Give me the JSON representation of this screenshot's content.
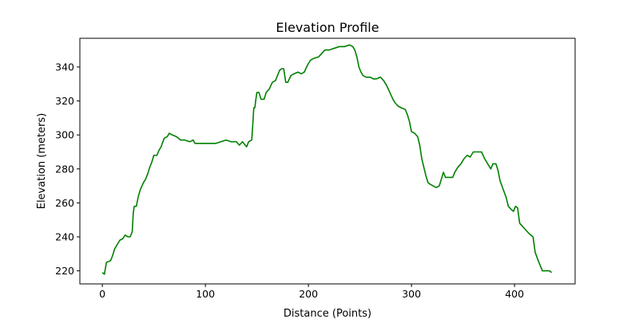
{
  "chart_data": {
    "type": "line",
    "title": "Elevation Profile",
    "xlabel": "Distance (Points)",
    "ylabel": "Elevation (meters)",
    "xlim": [
      -21.8,
      458.8
    ],
    "ylim": [
      212.3,
      356.9
    ],
    "xticks": [
      0,
      100,
      200,
      300,
      400
    ],
    "yticks": [
      220,
      240,
      260,
      280,
      300,
      320,
      340
    ],
    "grid": false,
    "legend": "none",
    "series": [
      {
        "color": "#008000",
        "points": [
          [
            0,
            219
          ],
          [
            2,
            218
          ],
          [
            4,
            225
          ],
          [
            8,
            226
          ],
          [
            10,
            229
          ],
          [
            12,
            233
          ],
          [
            15,
            236
          ],
          [
            17,
            238
          ],
          [
            20,
            239
          ],
          [
            22,
            241
          ],
          [
            25,
            240
          ],
          [
            27,
            240
          ],
          [
            29,
            243
          ],
          [
            30,
            254
          ],
          [
            31,
            258
          ],
          [
            33,
            258
          ],
          [
            35,
            264
          ],
          [
            37,
            268
          ],
          [
            40,
            272
          ],
          [
            42,
            274
          ],
          [
            44,
            277
          ],
          [
            46,
            281
          ],
          [
            48,
            284
          ],
          [
            50,
            288
          ],
          [
            53,
            288
          ],
          [
            55,
            291
          ],
          [
            57,
            293
          ],
          [
            60,
            298
          ],
          [
            63,
            299
          ],
          [
            65,
            301
          ],
          [
            68,
            300
          ],
          [
            72,
            299
          ],
          [
            76,
            297
          ],
          [
            80,
            297
          ],
          [
            85,
            296
          ],
          [
            88,
            297
          ],
          [
            90,
            295
          ],
          [
            95,
            295
          ],
          [
            100,
            295
          ],
          [
            105,
            295
          ],
          [
            110,
            295
          ],
          [
            115,
            296
          ],
          [
            120,
            297
          ],
          [
            125,
            296
          ],
          [
            130,
            296
          ],
          [
            133,
            294
          ],
          [
            136,
            296
          ],
          [
            140,
            293
          ],
          [
            142,
            296
          ],
          [
            145,
            297
          ],
          [
            146,
            306
          ],
          [
            147,
            316
          ],
          [
            148,
            316
          ],
          [
            149,
            321
          ],
          [
            150,
            325
          ],
          [
            152,
            325
          ],
          [
            154,
            321
          ],
          [
            157,
            321
          ],
          [
            159,
            325
          ],
          [
            162,
            327
          ],
          [
            165,
            331
          ],
          [
            168,
            332
          ],
          [
            170,
            335
          ],
          [
            172,
            338
          ],
          [
            174,
            339
          ],
          [
            176,
            339
          ],
          [
            178,
            331
          ],
          [
            180,
            331
          ],
          [
            183,
            335
          ],
          [
            186,
            336
          ],
          [
            190,
            337
          ],
          [
            193,
            336
          ],
          [
            196,
            337
          ],
          [
            199,
            341
          ],
          [
            202,
            344
          ],
          [
            205,
            345
          ],
          [
            210,
            346
          ],
          [
            213,
            348
          ],
          [
            216,
            350
          ],
          [
            220,
            350
          ],
          [
            225,
            351
          ],
          [
            230,
            352
          ],
          [
            235,
            352
          ],
          [
            240,
            353
          ],
          [
            243,
            352
          ],
          [
            245,
            350
          ],
          [
            247,
            346
          ],
          [
            249,
            340
          ],
          [
            251,
            337
          ],
          [
            253,
            335
          ],
          [
            256,
            334
          ],
          [
            260,
            334
          ],
          [
            263,
            333
          ],
          [
            266,
            333
          ],
          [
            270,
            334
          ],
          [
            273,
            332
          ],
          [
            276,
            329
          ],
          [
            279,
            325
          ],
          [
            282,
            321
          ],
          [
            284,
            319
          ],
          [
            287,
            317
          ],
          [
            290,
            316
          ],
          [
            294,
            315
          ],
          [
            296,
            312
          ],
          [
            298,
            308
          ],
          [
            300,
            302
          ],
          [
            303,
            301
          ],
          [
            306,
            299
          ],
          [
            308,
            294
          ],
          [
            310,
            286
          ],
          [
            312,
            281
          ],
          [
            314,
            276
          ],
          [
            316,
            272
          ],
          [
            318,
            271
          ],
          [
            321,
            270
          ],
          [
            324,
            269
          ],
          [
            327,
            270
          ],
          [
            329,
            274
          ],
          [
            331,
            278
          ],
          [
            333,
            275
          ],
          [
            336,
            275
          ],
          [
            340,
            275
          ],
          [
            342,
            278
          ],
          [
            345,
            281
          ],
          [
            348,
            283
          ],
          [
            351,
            286
          ],
          [
            354,
            288
          ],
          [
            357,
            287
          ],
          [
            360,
            290
          ],
          [
            364,
            290
          ],
          [
            368,
            290
          ],
          [
            371,
            286
          ],
          [
            374,
            283
          ],
          [
            377,
            280
          ],
          [
            379,
            283
          ],
          [
            382,
            283
          ],
          [
            384,
            279
          ],
          [
            386,
            273
          ],
          [
            389,
            268
          ],
          [
            392,
            263
          ],
          [
            394,
            258
          ],
          [
            397,
            256
          ],
          [
            399,
            255
          ],
          [
            401,
            258
          ],
          [
            403,
            257
          ],
          [
            405,
            248
          ],
          [
            408,
            246
          ],
          [
            411,
            244
          ],
          [
            414,
            242
          ],
          [
            418,
            240
          ],
          [
            420,
            231
          ],
          [
            423,
            226
          ],
          [
            425,
            223
          ],
          [
            427,
            220
          ],
          [
            430,
            220
          ],
          [
            434,
            220
          ],
          [
            436,
            219
          ]
        ]
      }
    ]
  }
}
